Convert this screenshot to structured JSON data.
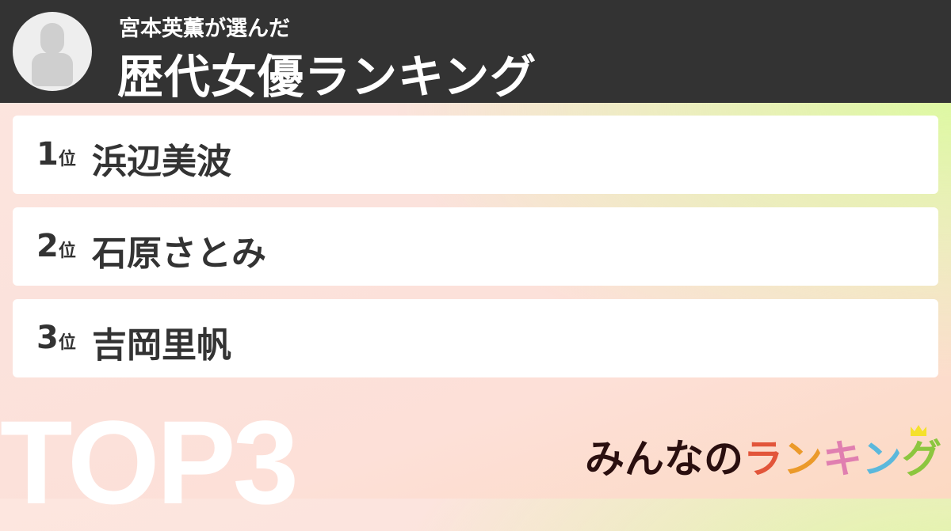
{
  "header": {
    "subtitle": "宮本英薫が選んだ",
    "title": "歴代女優ランキング",
    "avatar_icon": "user-silhouette-icon"
  },
  "ranking": [
    {
      "rank": "1",
      "unit": "位",
      "name": "浜辺美波"
    },
    {
      "rank": "2",
      "unit": "位",
      "name": "石原さとみ"
    },
    {
      "rank": "3",
      "unit": "位",
      "name": "吉岡里帆"
    }
  ],
  "badge": "TOP3",
  "logo": {
    "prefix": "みんなの",
    "chars": [
      "ラ",
      "ン",
      "キ",
      "ン",
      "グ"
    ],
    "colors": {
      "prefix": "#2a0f0f",
      "chars": [
        "#e2553a",
        "#eb9a2a",
        "#e07fb0",
        "#5bb8dc",
        "#8cc63f"
      ],
      "crown": "#f5e12a"
    }
  }
}
